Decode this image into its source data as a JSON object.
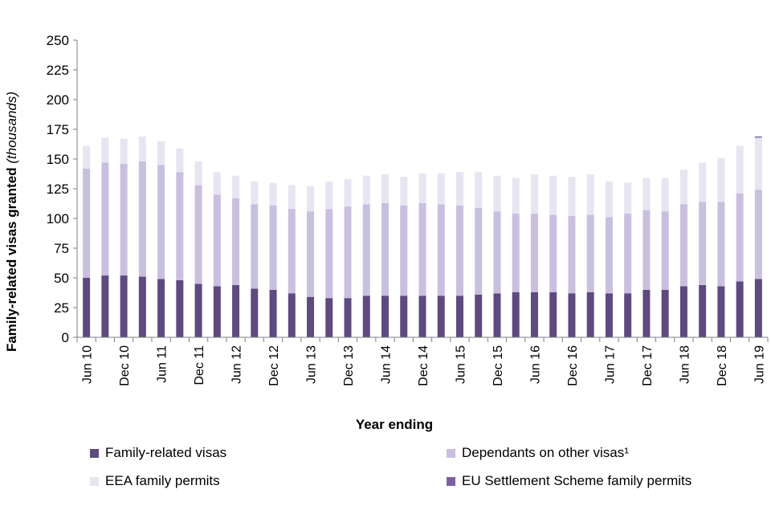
{
  "chart_data": {
    "type": "bar",
    "stacked": true,
    "xlabel": "Year ending",
    "ylabel_main": "Family-related visas granted",
    "ylabel_unit": "(thousands)",
    "ylim": [
      0,
      250
    ],
    "yticks": [
      0,
      25,
      50,
      75,
      100,
      125,
      150,
      175,
      200,
      225,
      250
    ],
    "grid": false,
    "legend_position": "bottom",
    "categories": [
      "Jun 10",
      "Sep 10",
      "Dec 10",
      "Mar 11",
      "Jun 11",
      "Sep 11",
      "Dec 11",
      "Mar 12",
      "Jun 12",
      "Sep 12",
      "Dec 12",
      "Mar 13",
      "Jun 13",
      "Sep 13",
      "Dec 13",
      "Mar 14",
      "Jun 14",
      "Sep 14",
      "Dec 14",
      "Mar 15",
      "Jun 15",
      "Sep 15",
      "Dec 15",
      "Mar 16",
      "Jun 16",
      "Sep 16",
      "Dec 16",
      "Mar 17",
      "Jun 17",
      "Sep 17",
      "Dec 17",
      "Mar 18",
      "Jun 18",
      "Sep 18",
      "Dec 18",
      "Mar 19",
      "Jun 19"
    ],
    "tick_labels": [
      "Jun 10",
      "",
      "Dec 10",
      "",
      "Jun 11",
      "",
      "Dec 11",
      "",
      "Jun 12",
      "",
      "Dec 12",
      "",
      "Jun 13",
      "",
      "Dec 13",
      "",
      "Jun 14",
      "",
      "Dec 14",
      "",
      "Jun 15",
      "",
      "Dec 15",
      "",
      "Jun 16",
      "",
      "Dec 16",
      "",
      "Jun 17",
      "",
      "Dec 17",
      "",
      "Jun 18",
      "",
      "Dec 18",
      "",
      "Jun 19"
    ],
    "series": [
      {
        "name": "Family-related visas",
        "color": "#5e4a7e",
        "values": [
          50,
          52,
          52,
          51,
          49,
          48,
          45,
          43,
          44,
          41,
          40,
          37,
          34,
          33,
          33,
          35,
          35,
          35,
          35,
          35,
          35,
          36,
          37,
          38,
          38,
          38,
          37,
          38,
          37,
          37,
          40,
          40,
          43,
          44,
          43,
          47,
          49
        ]
      },
      {
        "name": "Dependants on other visas¹",
        "color": "#c9bfde",
        "values": [
          92,
          95,
          94,
          97,
          96,
          91,
          83,
          77,
          73,
          71,
          71,
          71,
          72,
          75,
          77,
          77,
          78,
          76,
          78,
          77,
          76,
          73,
          69,
          66,
          66,
          65,
          65,
          65,
          64,
          67,
          67,
          66,
          69,
          70,
          71,
          74,
          75
        ]
      },
      {
        "name": "EEA family permits",
        "color": "#e8e4f1",
        "values": [
          19,
          21,
          21,
          21,
          20,
          20,
          20,
          19,
          19,
          19,
          19,
          20,
          21,
          23,
          23,
          24,
          24,
          24,
          25,
          26,
          28,
          30,
          30,
          30,
          33,
          33,
          33,
          34,
          30,
          26,
          27,
          28,
          29,
          33,
          37,
          40,
          44
        ]
      },
      {
        "name": "EU Settlement Scheme family permits",
        "color": "#7b62a3",
        "values": [
          0,
          0,
          0,
          0,
          0,
          0,
          0,
          0,
          0,
          0,
          0,
          0,
          0,
          0,
          0,
          0,
          0,
          0,
          0,
          0,
          0,
          0,
          0,
          0,
          0,
          0,
          0,
          0,
          0,
          0,
          0,
          0,
          0,
          0,
          0,
          0,
          1
        ]
      }
    ]
  }
}
